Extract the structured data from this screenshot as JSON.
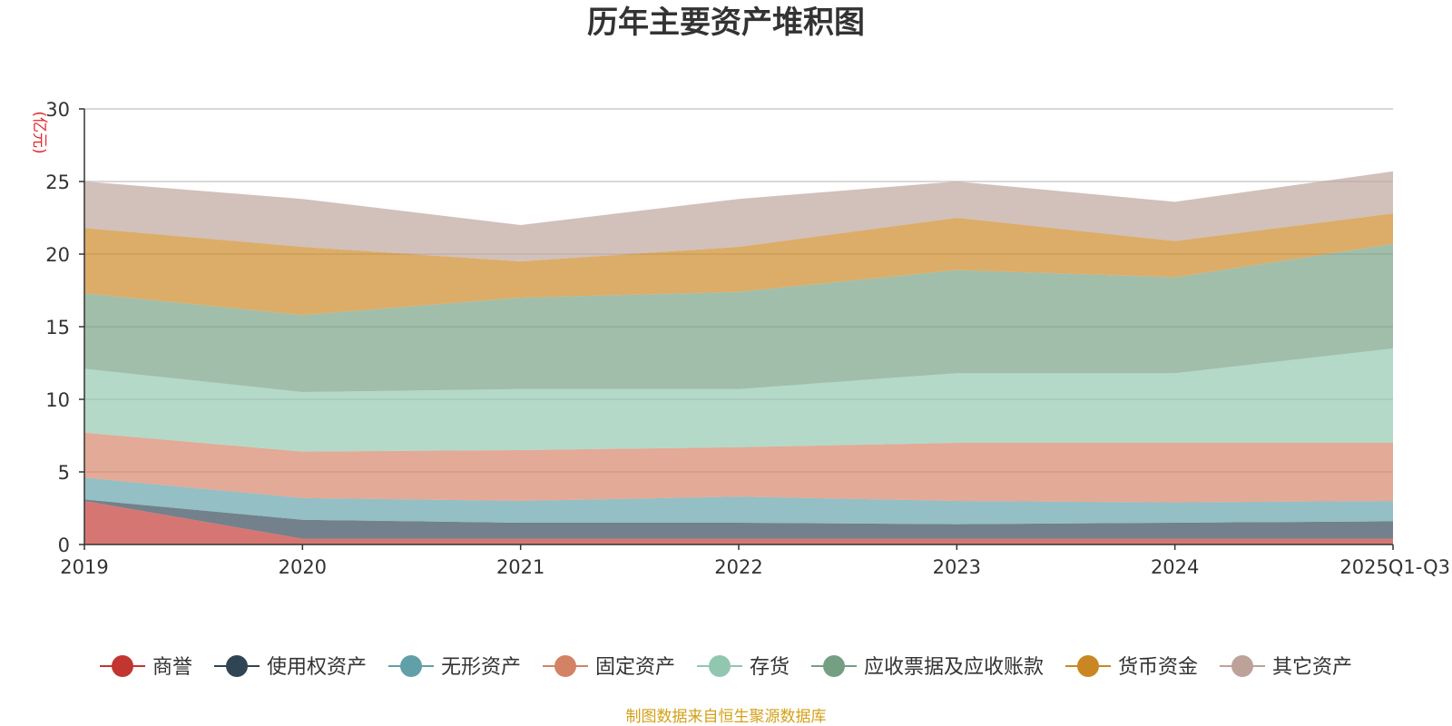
{
  "chart_data": {
    "type": "area",
    "stacked": true,
    "title": "历年主要资产堆积图",
    "ylabel": "(亿元)",
    "xlabel": "",
    "categories": [
      "2019",
      "2020",
      "2021",
      "2022",
      "2023",
      "2024",
      "2025Q1-Q3"
    ],
    "ylim": [
      0,
      30
    ],
    "yticks": [
      "0",
      "5",
      "10",
      "15",
      "20",
      "25",
      "30"
    ],
    "grid": true,
    "legend_position": "bottom",
    "series": [
      {
        "name": "商誉",
        "color": "#c23531",
        "values": [
          3.0,
          0.4,
          0.4,
          0.4,
          0.4,
          0.4,
          0.4
        ]
      },
      {
        "name": "使用权资产",
        "color": "#2f4554",
        "values": [
          0.1,
          1.3,
          1.1,
          1.1,
          1.0,
          1.1,
          1.2
        ]
      },
      {
        "name": "无形资产",
        "color": "#61a0a8",
        "values": [
          1.5,
          1.5,
          1.5,
          1.8,
          1.6,
          1.4,
          1.4
        ]
      },
      {
        "name": "固定资产",
        "color": "#d48265",
        "values": [
          3.1,
          3.2,
          3.5,
          3.4,
          4.0,
          4.1,
          4.0
        ]
      },
      {
        "name": "存货",
        "color": "#91c7ae",
        "values": [
          4.4,
          4.1,
          4.2,
          4.0,
          4.8,
          4.8,
          6.5
        ]
      },
      {
        "name": "应收票据及应收账款",
        "color": "#749f83",
        "values": [
          5.2,
          5.3,
          6.3,
          6.7,
          7.1,
          6.6,
          7.2
        ]
      },
      {
        "name": "货币资金",
        "color": "#ca8622",
        "values": [
          4.5,
          4.7,
          2.5,
          3.1,
          3.6,
          2.5,
          2.1
        ]
      },
      {
        "name": "其它资产",
        "color": "#bda29a",
        "values": [
          3.2,
          3.3,
          2.5,
          3.3,
          2.5,
          2.7,
          2.9
        ]
      }
    ],
    "source": "制图数据来自恒生聚源数据库"
  }
}
